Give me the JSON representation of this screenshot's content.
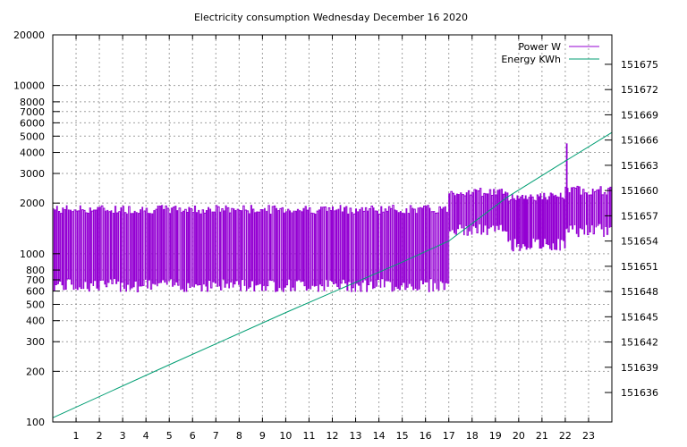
{
  "chart_data": {
    "type": "line",
    "title": "Electricity consumption Wednesday December 16 2020",
    "xlabel": "",
    "ylabel": "",
    "y2label": "",
    "x": {
      "range": [
        0,
        24
      ],
      "ticks": [
        1,
        2,
        3,
        4,
        5,
        6,
        7,
        8,
        9,
        10,
        11,
        12,
        13,
        14,
        15,
        16,
        17,
        18,
        19,
        20,
        21,
        22,
        23
      ]
    },
    "y_left": {
      "scale": "log",
      "range": [
        100,
        20000
      ],
      "ticks": [
        100,
        200,
        300,
        400,
        500,
        600,
        700,
        800,
        1000,
        2000,
        3000,
        4000,
        5000,
        6000,
        7000,
        8000,
        10000,
        20000
      ]
    },
    "y_right": {
      "scale": "linear",
      "range": [
        151632.5,
        151678.5
      ],
      "ticks": [
        151636,
        151639,
        151642,
        151645,
        151648,
        151651,
        151654,
        151657,
        151660,
        151663,
        151666,
        151669,
        151672,
        151675
      ]
    },
    "grid": true,
    "legend_position": "top-right",
    "series": [
      {
        "name": "Power W",
        "axis": "left",
        "color": "#9400d3",
        "segments": [
          {
            "from": 0,
            "to": 17,
            "high": 1850,
            "low": 660,
            "switches_per_hour": 12
          },
          {
            "from": 17,
            "to": 19.5,
            "high": 2350,
            "low": 1400,
            "switches_per_hour": 12
          },
          {
            "from": 19.5,
            "to": 22,
            "high": 2200,
            "low": 1150,
            "switches_per_hour": 14
          },
          {
            "from": 22,
            "to": 24,
            "high": 2400,
            "low": 1400,
            "switches_per_hour": 12
          }
        ],
        "peak": {
          "x": 22.05,
          "y": 4500
        }
      },
      {
        "name": "Energy KWh",
        "axis": "right",
        "color": "#009e73",
        "points": [
          [
            0,
            151633.0
          ],
          [
            5,
            151639.3
          ],
          [
            10,
            151645.5
          ],
          [
            15,
            151651.5
          ],
          [
            17,
            151654.0
          ],
          [
            19.5,
            151659.2
          ],
          [
            22,
            151663.5
          ],
          [
            24,
            151666.9
          ]
        ]
      }
    ]
  }
}
